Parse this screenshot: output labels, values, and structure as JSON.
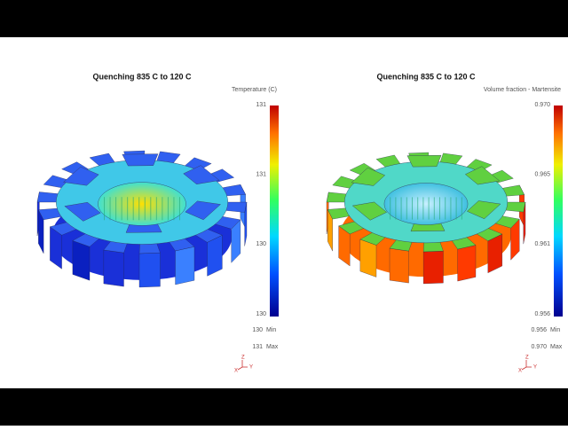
{
  "panels": [
    {
      "title": "Quenching 835 C to 120 C",
      "legend_title": "Temperature (C)",
      "scale_labels": [
        "131",
        "131",
        "130",
        "130"
      ],
      "min": {
        "value": "130",
        "label": "Min"
      },
      "max": {
        "value": "131",
        "label": "Max"
      },
      "axes": [
        "Z",
        "X",
        "Y"
      ]
    },
    {
      "title": "Quenching 835 C to 120 C",
      "legend_title": "Volume fraction - Martensite",
      "scale_labels": [
        "0.970",
        "0.965",
        "0.961",
        "0.956"
      ],
      "min": {
        "value": "0.956",
        "label": "Min"
      },
      "max": {
        "value": "0.970",
        "label": "Max"
      },
      "axes": [
        "Z",
        "X",
        "Y"
      ]
    }
  ]
}
